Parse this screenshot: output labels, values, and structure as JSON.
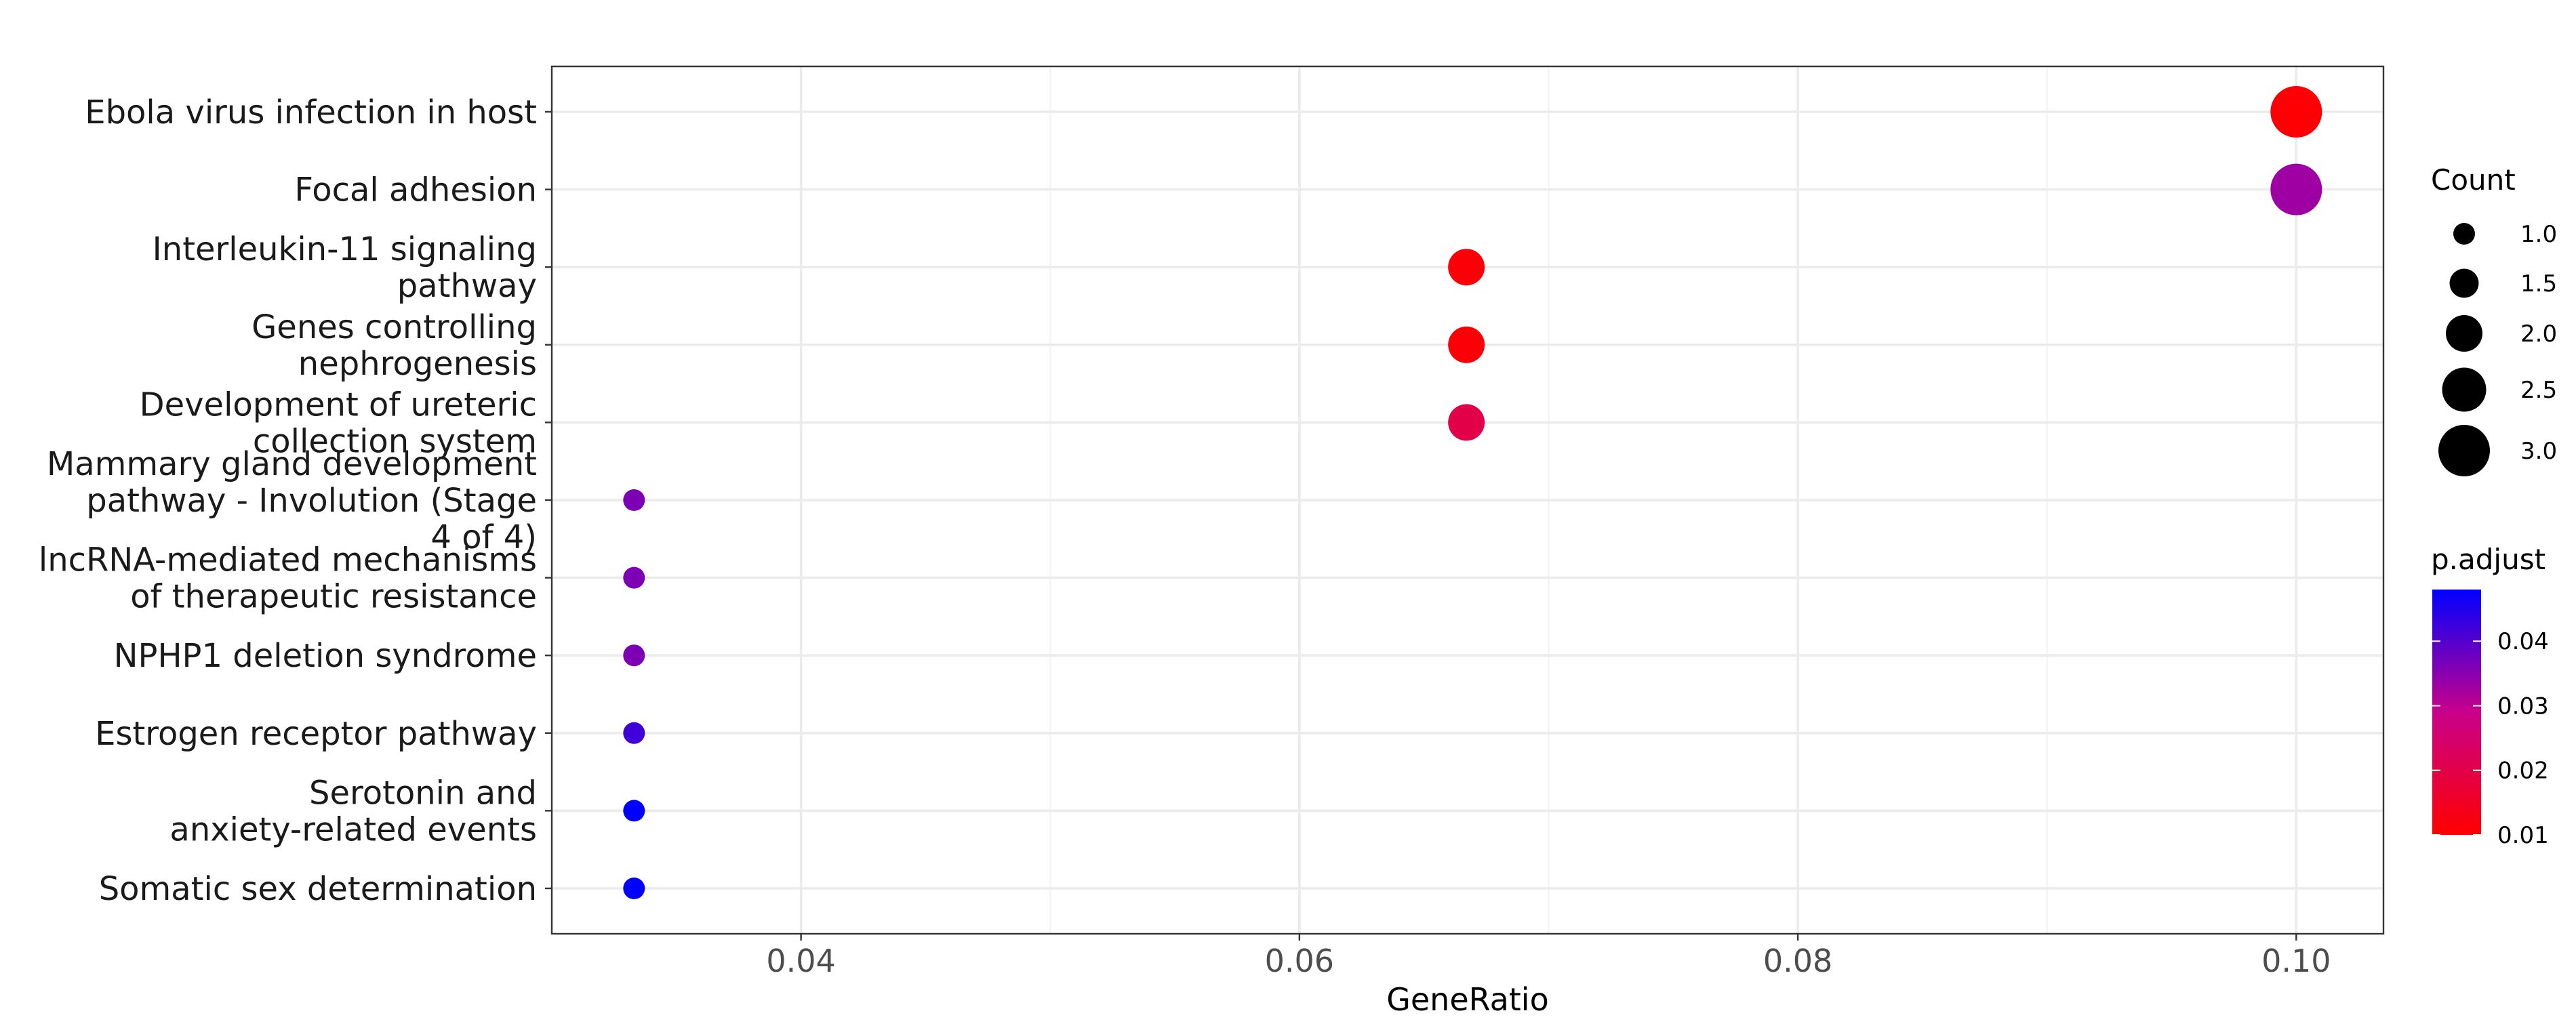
{
  "chart_data": {
    "type": "scatter",
    "xlabel": "GeneRatio",
    "ylabel": "",
    "title": "",
    "xlim": [
      0.03,
      0.1035
    ],
    "xticks": [
      "0.04",
      "0.06",
      "0.08",
      "0.10"
    ],
    "xtick_values": [
      0.04,
      0.06,
      0.08,
      0.1
    ],
    "grid": true,
    "legend_position": "right",
    "points": [
      {
        "label": "Ebola virus infection in host",
        "gene_ratio": 0.1,
        "count": 3,
        "p_adjust": 0.0105
      },
      {
        "label": "Focal adhesion",
        "gene_ratio": 0.1,
        "count": 3,
        "p_adjust": 0.033
      },
      {
        "label": "Interleukin-11 signaling pathway",
        "gene_ratio": 0.0667,
        "count": 2,
        "p_adjust": 0.011
      },
      {
        "label": "Genes controlling nephrogenesis",
        "gene_ratio": 0.0667,
        "count": 2,
        "p_adjust": 0.011
      },
      {
        "label": "Development of ureteric collection system",
        "gene_ratio": 0.0667,
        "count": 2,
        "p_adjust": 0.02
      },
      {
        "label": "Mammary gland development pathway - Involution (Stage 4 of 4)",
        "gene_ratio": 0.0333,
        "count": 1,
        "p_adjust": 0.036
      },
      {
        "label": "lncRNA-mediated mechanisms of therapeutic resistance",
        "gene_ratio": 0.0333,
        "count": 1,
        "p_adjust": 0.036
      },
      {
        "label": "NPHP1 deletion syndrome",
        "gene_ratio": 0.0333,
        "count": 1,
        "p_adjust": 0.036
      },
      {
        "label": "Estrogen receptor pathway",
        "gene_ratio": 0.0333,
        "count": 1,
        "p_adjust": 0.042
      },
      {
        "label": "Serotonin and anxiety-related events",
        "gene_ratio": 0.0333,
        "count": 1,
        "p_adjust": 0.048
      },
      {
        "label": "Somatic sex determination",
        "gene_ratio": 0.0333,
        "count": 1,
        "p_adjust": 0.048
      }
    ],
    "category_lines": [
      [
        "Ebola virus infection in host"
      ],
      [
        "Focal adhesion"
      ],
      [
        "Interleukin-11 signaling",
        "pathway"
      ],
      [
        "Genes controlling",
        "nephrogenesis"
      ],
      [
        "Development of ureteric",
        "collection system"
      ],
      [
        "Mammary gland development",
        "pathway - Involution (Stage",
        "4 of 4)"
      ],
      [
        "lncRNA-mediated mechanisms",
        "of therapeutic resistance"
      ],
      [
        "NPHP1 deletion syndrome"
      ],
      [
        "Estrogen receptor pathway"
      ],
      [
        "Serotonin and",
        "anxiety-related events"
      ],
      [
        "Somatic sex determination"
      ]
    ],
    "size_legend": {
      "title": "Count",
      "entries": [
        {
          "label": "1.0",
          "value": 1
        },
        {
          "label": "1.5",
          "value": 1.5
        },
        {
          "label": "2.0",
          "value": 2
        },
        {
          "label": "2.5",
          "value": 2.5
        },
        {
          "label": "3.0",
          "value": 3
        }
      ]
    },
    "color_legend": {
      "title": "p.adjust",
      "range": [
        0.01,
        0.048
      ],
      "low_color": "#ff0000",
      "high_color": "#0000ff",
      "ticks": [
        {
          "label": "0.04",
          "value": 0.04
        },
        {
          "label": "0.03",
          "value": 0.03
        },
        {
          "label": "0.02",
          "value": 0.02
        },
        {
          "label": "0.01",
          "value": 0.01
        }
      ]
    }
  }
}
